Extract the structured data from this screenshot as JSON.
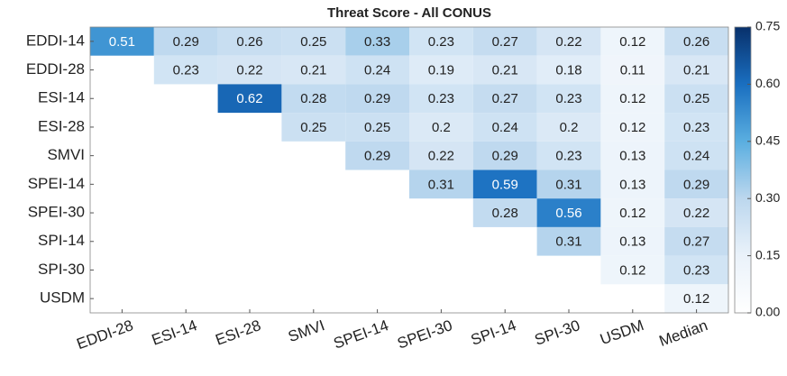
{
  "chart_data": {
    "type": "heatmap",
    "title": "Threat Score - All CONUS",
    "categories": [
      "EDDI-28",
      "ESI-14",
      "ESI-28",
      "SMVI",
      "SPEI-14",
      "SPEI-30",
      "SPI-14",
      "SPI-30",
      "USDM",
      "Median"
    ],
    "rows": [
      "EDDI-14",
      "EDDI-28",
      "ESI-14",
      "ESI-28",
      "SMVI",
      "SPEI-14",
      "SPEI-30",
      "SPI-14",
      "SPI-30",
      "USDM"
    ],
    "values": [
      [
        0.51,
        0.29,
        0.26,
        0.25,
        0.33,
        0.23,
        0.27,
        0.22,
        0.12,
        0.26
      ],
      [
        null,
        0.23,
        0.22,
        0.21,
        0.24,
        0.19,
        0.21,
        0.18,
        0.11,
        0.21
      ],
      [
        null,
        null,
        0.62,
        0.28,
        0.29,
        0.23,
        0.27,
        0.23,
        0.12,
        0.25
      ],
      [
        null,
        null,
        null,
        0.25,
        0.25,
        0.2,
        0.24,
        0.2,
        0.12,
        0.23
      ],
      [
        null,
        null,
        null,
        null,
        0.29,
        0.22,
        0.29,
        0.23,
        0.13,
        0.24
      ],
      [
        null,
        null,
        null,
        null,
        null,
        0.31,
        0.59,
        0.31,
        0.13,
        0.29
      ],
      [
        null,
        null,
        null,
        null,
        null,
        null,
        0.28,
        0.56,
        0.12,
        0.22
      ],
      [
        null,
        null,
        null,
        null,
        null,
        null,
        null,
        0.31,
        0.13,
        0.27
      ],
      [
        null,
        null,
        null,
        null,
        null,
        null,
        null,
        null,
        0.12,
        0.23
      ],
      [
        null,
        null,
        null,
        null,
        null,
        null,
        null,
        null,
        null,
        0.12
      ]
    ],
    "colorscale": [
      [
        0,
        "#ffffff"
      ],
      [
        0.15,
        "#eaf2fa"
      ],
      [
        0.3,
        "#bcd7ee"
      ],
      [
        0.45,
        "#5aaee0"
      ],
      [
        0.6,
        "#1a6fc0"
      ],
      [
        0.75,
        "#08306b"
      ]
    ],
    "clim": [
      0,
      0.75
    ],
    "cticks": [
      {
        "value": 0,
        "label": "0.00"
      },
      {
        "value": 0.15,
        "label": "0.15"
      },
      {
        "value": 0.3,
        "label": "0.30"
      },
      {
        "value": 0.45,
        "label": "0.45"
      },
      {
        "value": 0.6,
        "label": "0.60"
      },
      {
        "value": 0.75,
        "label": "0.75"
      }
    ]
  }
}
